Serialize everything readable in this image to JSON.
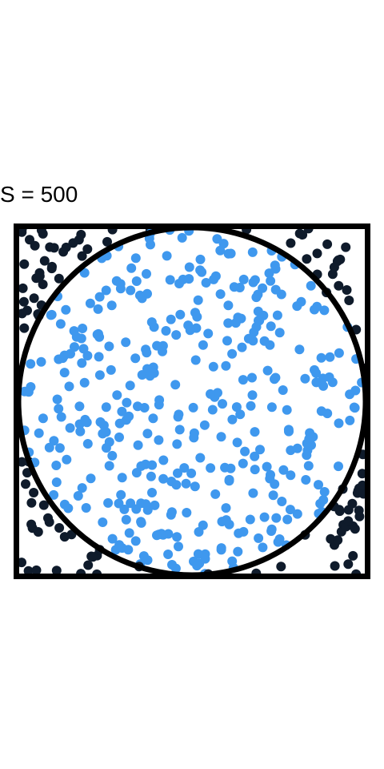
{
  "title": "S = 500",
  "chart_data": {
    "type": "scatter",
    "title": "S = 500",
    "sample_count": 500,
    "xlim": [
      -1,
      1
    ],
    "ylim": [
      -1,
      1
    ],
    "shapes": [
      "unit-square",
      "unit-circle"
    ],
    "series": [
      {
        "key": "inside",
        "color": "#3f98ee"
      },
      {
        "key": "outside",
        "color": "#0f1b2b"
      }
    ],
    "seed": 7
  }
}
